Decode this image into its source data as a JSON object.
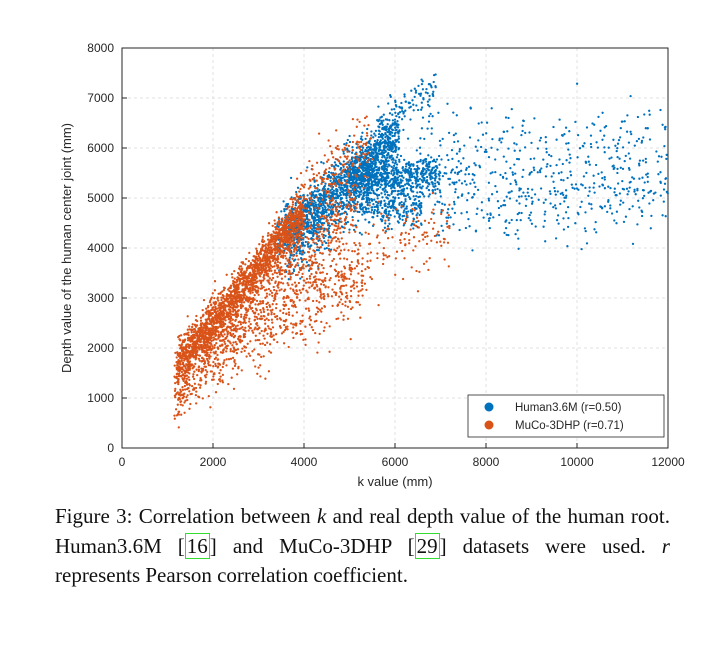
{
  "chart_data": {
    "type": "scatter",
    "xlabel": "k value (mm)",
    "ylabel": "Depth value of the human center joint (mm)",
    "xlim": [
      0,
      12000
    ],
    "ylim": [
      0,
      8000
    ],
    "x_ticks": [
      "0",
      "2000",
      "4000",
      "6000",
      "8000",
      "10000",
      "12000"
    ],
    "y_ticks": [
      "0",
      "1000",
      "2000",
      "3000",
      "4000",
      "5000",
      "6000",
      "7000",
      "8000"
    ],
    "grid": "dashed",
    "legend_position": "bottom-right",
    "series": [
      {
        "name": "Human3.6M (r=0.50)",
        "color": "#0072BD",
        "clusters": [
          {
            "x": [
              3400,
              6100
            ],
            "y_at_x_start": 4200,
            "y_at_x_end": 6300,
            "spread": 250,
            "n": 1000
          },
          {
            "x": [
              3600,
              6000
            ],
            "y_at_x_start": 4000,
            "y_at_x_end": 6000,
            "spread": 380,
            "n": 800
          },
          {
            "x": [
              5600,
              6900
            ],
            "y_at_x_start": 6300,
            "y_at_x_end": 7200,
            "spread": 220,
            "n": 110
          },
          {
            "x": [
              5000,
              7000
            ],
            "y_at_x_start": 5300,
            "y_at_x_end": 5500,
            "spread": 180,
            "n": 500
          },
          {
            "x": [
              5200,
              6600
            ],
            "y_at_x_start": 4800,
            "y_at_x_end": 4800,
            "spread": 200,
            "n": 220
          },
          {
            "x": [
              6000,
              12000
            ],
            "y_at_x_start": 5300,
            "y_at_x_end": 5300,
            "spread": 420,
            "n": 450
          },
          {
            "x": [
              6500,
              12000
            ],
            "y_at_x_start": 6200,
            "y_at_x_end": 6200,
            "spread": 300,
            "n": 130
          },
          {
            "x": [
              6800,
              10500
            ],
            "y_at_x_start": 4700,
            "y_at_x_end": 4400,
            "spread": 250,
            "n": 70
          }
        ]
      },
      {
        "name": "MuCo-3DHP (r=0.71)",
        "color": "#D95319",
        "clusters": [
          {
            "x": [
              1200,
              4000
            ],
            "y_at_x_start": 1600,
            "y_at_x_end": 4700,
            "spread": 230,
            "n": 1900
          },
          {
            "x": [
              1150,
              5200
            ],
            "y_at_x_start": 1300,
            "y_at_x_end": 4900,
            "spread": 420,
            "n": 700
          },
          {
            "x": [
              1700,
              5300
            ],
            "y_at_x_start": 1900,
            "y_at_x_end": 3400,
            "spread": 380,
            "n": 550
          },
          {
            "x": [
              1150,
              1500
            ],
            "y_at_x_start": 900,
            "y_at_x_end": 1300,
            "spread": 230,
            "n": 50
          },
          {
            "x": [
              3800,
              5500
            ],
            "y_at_x_start": 4900,
            "y_at_x_end": 6200,
            "spread": 350,
            "n": 170
          },
          {
            "x": [
              4500,
              7200
            ],
            "y_at_x_start": 3700,
            "y_at_x_end": 4400,
            "spread": 400,
            "n": 160
          }
        ]
      }
    ]
  },
  "caption": {
    "figure_label": "Figure 3:",
    "text_1": " Correlation between ",
    "math_k": "k",
    "text_2": " and real depth value of the human root. Human3.6M ",
    "ref_1": "16",
    "text_3": " and MuCo-3DHP ",
    "ref_2": "29",
    "text_4": " datasets were used. ",
    "math_r": "r",
    "text_5": " represents Pearson correlation coefficient."
  }
}
